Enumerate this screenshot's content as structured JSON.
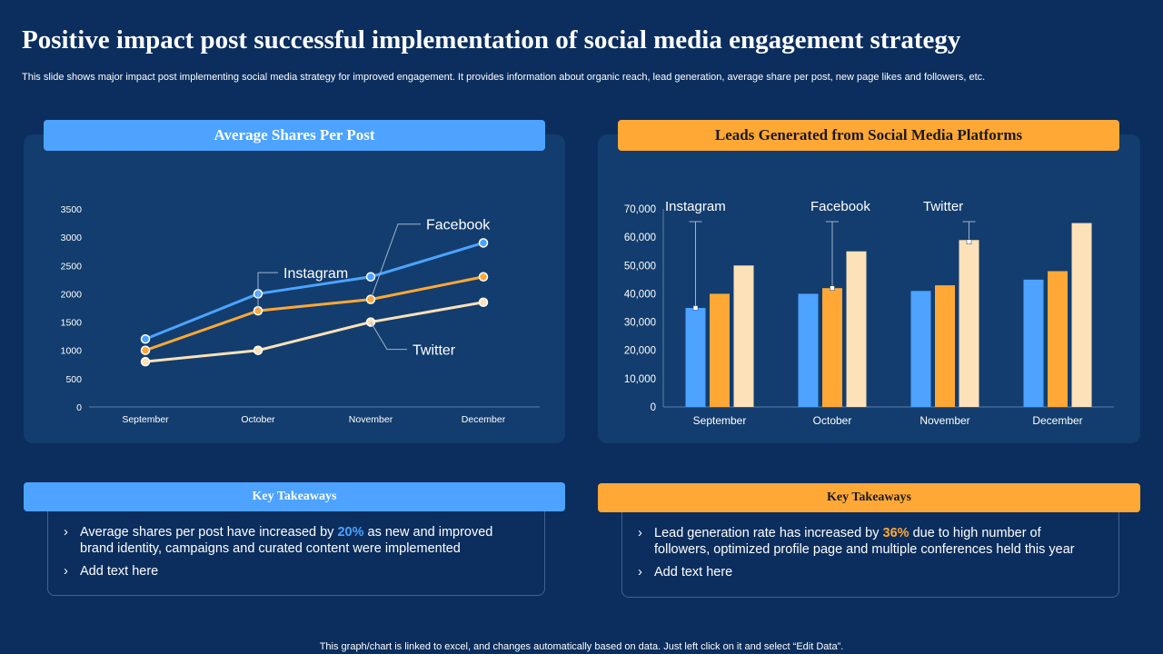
{
  "slide": {
    "title": "Positive impact post successful implementation of social media engagement strategy",
    "subtitle": "This slide shows major impact post implementing social media strategy for improved engagement. It provides information about organic reach, lead generation, average share per post, new page likes and followers, etc.",
    "footer": "This graph/chart is linked to excel, and changes automatically based on data. Just left click on it and select “Edit Data”."
  },
  "colors": {
    "background": "#0b2e5e",
    "panel": "#123d6e",
    "blue": "#4da3ff",
    "orange": "#ffa836",
    "cream": "#fde1b8"
  },
  "left_panel": {
    "heading": "Average Shares Per Post"
  },
  "right_panel": {
    "heading": "Leads Generated from Social Media Platforms"
  },
  "chart_data": [
    {
      "type": "line",
      "title": "Average Shares Per Post",
      "categories": [
        "September",
        "October",
        "November",
        "December"
      ],
      "y_ticks": [
        "0",
        "500",
        "1000",
        "1500",
        "2000",
        "2500",
        "3000",
        "3500"
      ],
      "ylim": [
        0,
        3500
      ],
      "series": [
        {
          "name": "Facebook",
          "color": "#4da3ff",
          "values": [
            1200,
            2000,
            2300,
            2900
          ]
        },
        {
          "name": "Instagram",
          "color": "#ffa836",
          "values": [
            1000,
            1700,
            1900,
            2300
          ]
        },
        {
          "name": "Twitter",
          "color": "#fde1b8",
          "values": [
            800,
            1000,
            1500,
            1850
          ]
        }
      ],
      "legend": "callout-labels"
    },
    {
      "type": "bar",
      "title": "Leads Generated from Social Media Platforms",
      "categories": [
        "September",
        "October",
        "November",
        "December"
      ],
      "y_ticks": [
        "0",
        "10,000",
        "20,000",
        "30,000",
        "40,000",
        "50,000",
        "60,000",
        "70,000"
      ],
      "ylim": [
        0,
        70000
      ],
      "series": [
        {
          "name": "Instagram",
          "color": "#4da3ff",
          "values": [
            35000,
            40000,
            41000,
            45000
          ]
        },
        {
          "name": "Facebook",
          "color": "#ffa836",
          "values": [
            40000,
            42000,
            43000,
            48000
          ]
        },
        {
          "name": "Twitter",
          "color": "#fde1b8",
          "values": [
            50000,
            55000,
            59000,
            65000
          ]
        }
      ],
      "legend": "callout-labels"
    }
  ],
  "takeaways_left": {
    "heading": "Key Takeaways",
    "item1_pre": "Average shares per post have increased by ",
    "item1_highlight": "20%",
    "item1_post": " as new and improved brand identity, campaigns and curated content were implemented",
    "item2": "Add text here",
    "bullet": "›"
  },
  "takeaways_right": {
    "heading": "Key Takeaways",
    "item1_pre": "Lead generation rate has increased by ",
    "item1_highlight": "36%",
    "item1_post": " due to high number of followers, optimized profile page and multiple conferences held this year",
    "item2": "Add text here",
    "bullet": "›"
  }
}
